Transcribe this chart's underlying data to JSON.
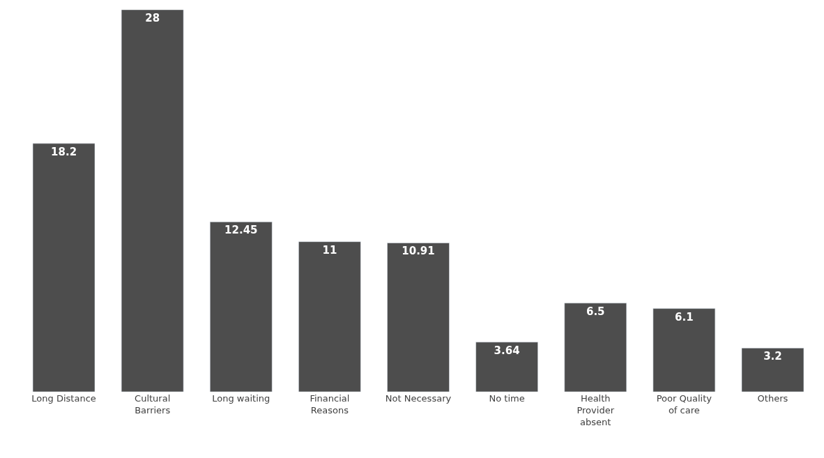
{
  "chart_data": {
    "type": "bar",
    "categories": [
      "Long Distance",
      "Cultural Barriers",
      "Long waiting",
      "Financial Reasons",
      "Not Necessary",
      "No time",
      "Health Provider absent",
      "Poor Quality of care",
      "Others"
    ],
    "values": [
      18.2,
      28,
      12.45,
      11,
      10.91,
      3.64,
      6.5,
      6.1,
      3.2
    ],
    "color": "#4d4d4d",
    "data_labels": true
  }
}
